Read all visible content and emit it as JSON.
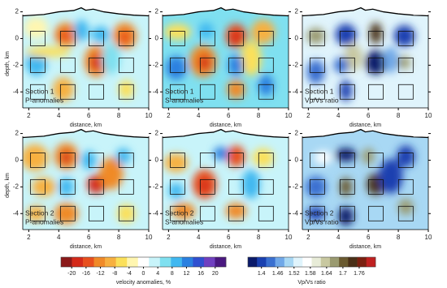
{
  "figure": {
    "axes": {
      "xlim": [
        1.6,
        10
      ],
      "ylim": [
        -5.2,
        2.4
      ],
      "xticks": [
        2,
        4,
        6,
        8,
        10
      ],
      "yticks": [
        2,
        0,
        -2,
        -4
      ],
      "xlabel": "distance, km",
      "ylabel": "depth, km"
    },
    "panels": [
      {
        "section": "Section 1",
        "label": "P-anomalies"
      },
      {
        "section": "Section 1",
        "label": "S-anomalies"
      },
      {
        "section": "Section 1",
        "label": "Vp/Vs ratio"
      },
      {
        "section": "Section 2",
        "label": "P-anomalies"
      },
      {
        "section": "Section 2",
        "label": "S-anomalies"
      },
      {
        "section": "Section 2",
        "label": "Vp/Vs ratio"
      }
    ],
    "colorbars": [
      {
        "label": "velocity anomalies, %",
        "lim": [
          -23,
          23
        ],
        "ticks": [
          -20,
          -16,
          -12,
          -8,
          -4,
          0,
          4,
          8,
          12,
          16,
          20
        ],
        "colors": [
          "#8b1a1a",
          "#d42a1a",
          "#e8501e",
          "#f08a28",
          "#f7b040",
          "#fbe05a",
          "#fff6b0",
          "#ffffff",
          "#c8f4fa",
          "#7fe0f0",
          "#40b8f0",
          "#2a80e0",
          "#3050d0",
          "#7040c0",
          "#4a1880"
        ]
      },
      {
        "label": "Vp/Vs ratio",
        "lim": [
          1.35,
          1.82
        ],
        "ticks": [
          1.4,
          1.46,
          1.52,
          1.58,
          1.64,
          1.7,
          1.76
        ],
        "colors": [
          "#0a1a6a",
          "#1a40b0",
          "#3a70d0",
          "#70a8e8",
          "#a8d8f4",
          "#e0f4fc",
          "#ffffff",
          "#e8ecd8",
          "#c8c8a0",
          "#9a9a70",
          "#6a5a30",
          "#4a3018",
          "#7a2010",
          "#c02020"
        ]
      }
    ]
  }
}
